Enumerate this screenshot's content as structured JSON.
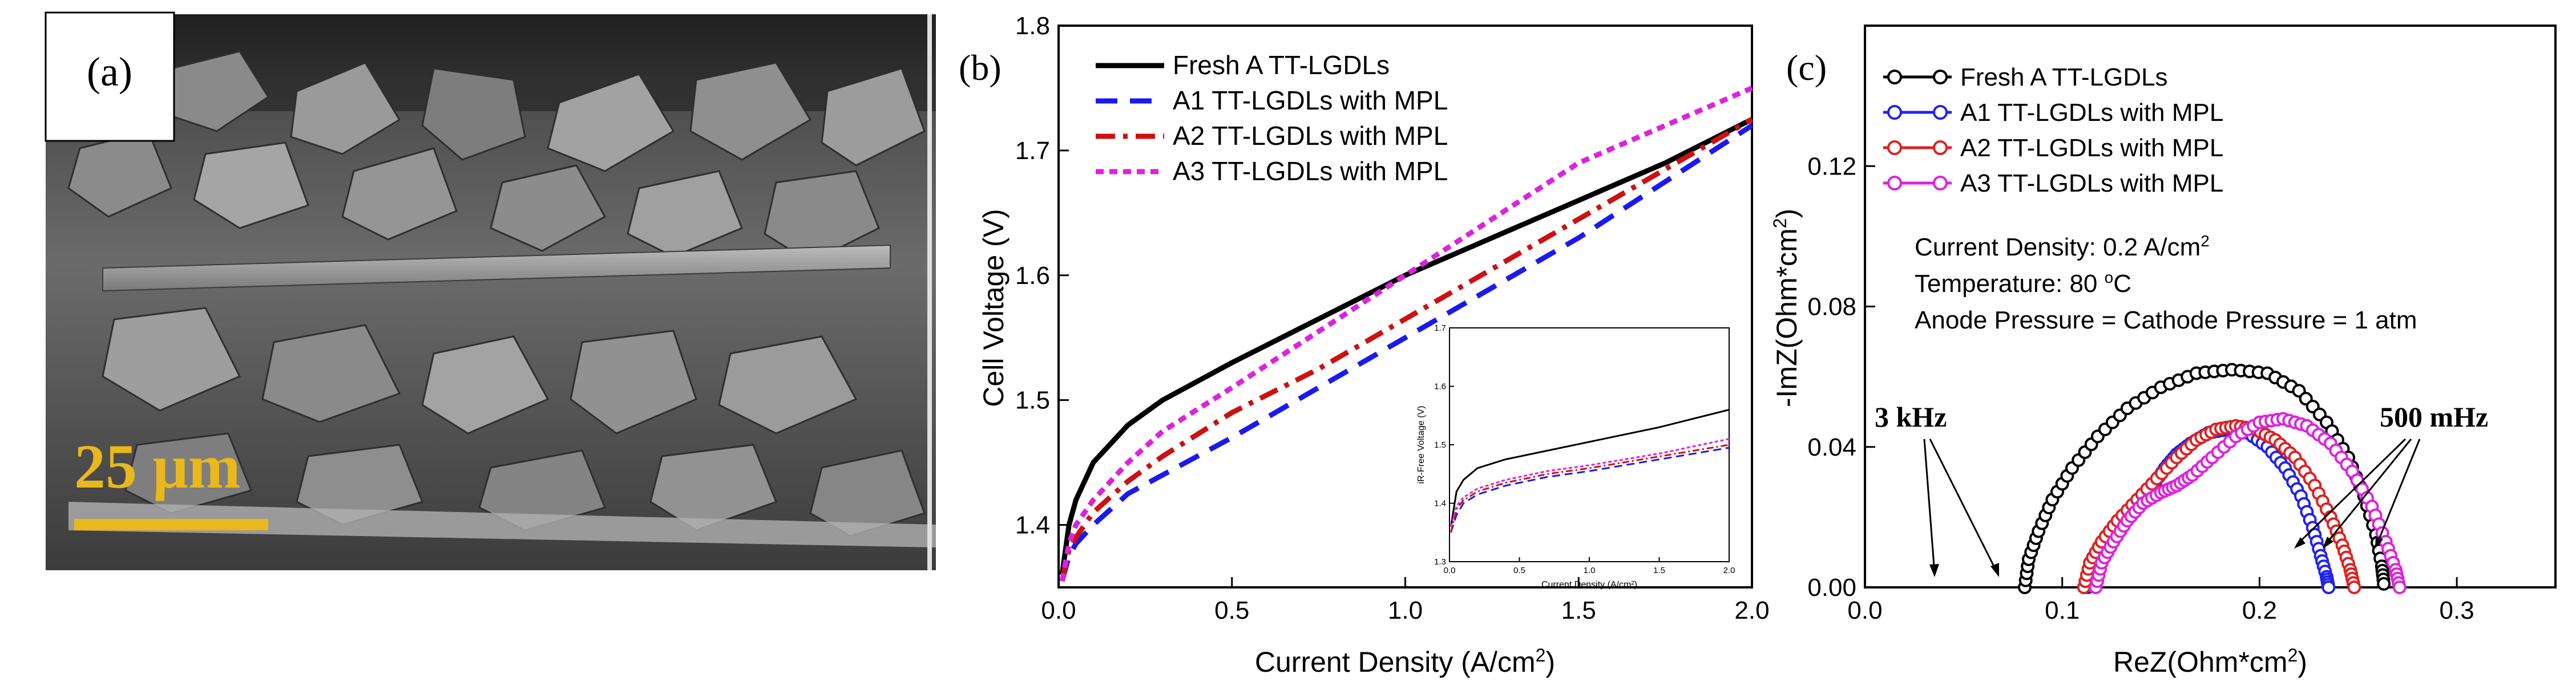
{
  "panel_a": {
    "label": "(a)",
    "scale_bar_label": "25 μm",
    "colors": {
      "scale_bar": "#e8b81c",
      "background": "#4a4a4a"
    }
  },
  "panel_b": {
    "label": "(b)",
    "inset": {
      "xlabel": "Current Density (A/cm²)",
      "ylabel": "iR-Free Voltage (V)",
      "xticks": [
        "0.0",
        "0.5",
        "1.0",
        "1.5",
        "2.0"
      ],
      "yticks": [
        "1.3",
        "1.4",
        "1.5",
        "1.6",
        "1.7"
      ]
    }
  },
  "panel_c": {
    "label": "(c)",
    "annotations": {
      "current_density": "Current Density: 0.2 A/cm",
      "current_density_sup": "2",
      "temperature": "Temperature: 80 ",
      "temperature_sup": "o",
      "temperature_unit": "C",
      "pressure": "Anode Pressure = Cathode Pressure = 1 atm",
      "freq_low": "3 kHz",
      "freq_high": "500 mHz"
    }
  },
  "chart_data": [
    {
      "type": "line",
      "title": "",
      "xlabel": "Current Density (A/cm",
      "xlabel_sup": "2",
      "xlabel_end": ")",
      "ylabel": "Cell Voltage (V)",
      "xlim": [
        0.0,
        2.0
      ],
      "ylim": [
        1.35,
        1.8
      ],
      "xticks": [
        "0.0",
        "0.5",
        "1.0",
        "1.5",
        "2.0"
      ],
      "yticks": [
        "1.4",
        "1.5",
        "1.6",
        "1.7",
        "1.8"
      ],
      "legend_position": "top-left",
      "x": [
        0.01,
        0.03,
        0.05,
        0.1,
        0.2,
        0.3,
        0.5,
        0.75,
        1.0,
        1.25,
        1.5,
        1.75,
        2.0
      ],
      "series": [
        {
          "name": "Fresh A TT-LGDLs",
          "color": "#000000",
          "dash": "solid",
          "values": [
            1.36,
            1.4,
            1.42,
            1.45,
            1.48,
            1.5,
            1.53,
            1.565,
            1.6,
            1.63,
            1.66,
            1.69,
            1.725
          ]
        },
        {
          "name": "A1 TT-LGDLs with MPL",
          "color": "#1a1aee",
          "dash": "dash",
          "values": [
            1.355,
            1.375,
            1.385,
            1.4,
            1.425,
            1.44,
            1.47,
            1.51,
            1.55,
            1.59,
            1.63,
            1.675,
            1.72
          ]
        },
        {
          "name": "A2 TT-LGDLs with MPL",
          "color": "#cc1111",
          "dash": "dashdot",
          "values": [
            1.355,
            1.38,
            1.39,
            1.41,
            1.435,
            1.455,
            1.49,
            1.525,
            1.565,
            1.605,
            1.645,
            1.685,
            1.725
          ]
        },
        {
          "name": "A3 TT-LGDLs with MPL",
          "color": "#dd22dd",
          "dash": "dot",
          "values": [
            1.355,
            1.385,
            1.4,
            1.42,
            1.45,
            1.475,
            1.51,
            1.555,
            1.6,
            1.645,
            1.69,
            1.72,
            1.75
          ]
        }
      ],
      "inset": {
        "type": "line",
        "xlim": [
          0.0,
          2.0
        ],
        "ylim": [
          1.3,
          1.7
        ],
        "x": [
          0.01,
          0.05,
          0.1,
          0.2,
          0.4,
          0.7,
          1.0,
          1.5,
          2.0
        ],
        "series": [
          {
            "name": "Fresh A TT-LGDLs",
            "values": [
              1.36,
              1.42,
              1.44,
              1.46,
              1.475,
              1.49,
              1.505,
              1.53,
              1.56
            ]
          },
          {
            "name": "A1 TT-LGDLs with MPL",
            "values": [
              1.35,
              1.38,
              1.4,
              1.415,
              1.43,
              1.445,
              1.455,
              1.475,
              1.495
            ]
          },
          {
            "name": "A2 TT-LGDLs with MPL",
            "values": [
              1.35,
              1.39,
              1.405,
              1.42,
              1.435,
              1.45,
              1.46,
              1.48,
              1.5
            ]
          },
          {
            "name": "A3 TT-LGDLs with MPL",
            "values": [
              1.36,
              1.395,
              1.41,
              1.425,
              1.44,
              1.455,
              1.465,
              1.485,
              1.51
            ]
          }
        ]
      }
    },
    {
      "type": "scatter",
      "title": "",
      "xlabel": "ReZ(Ohm*cm",
      "xlabel_sup": "2",
      "xlabel_end": ")",
      "ylabel": "-ImZ(Ohm*cm",
      "ylabel_sup": "2",
      "ylabel_end": ")",
      "xlim": [
        0.0,
        0.35
      ],
      "ylim": [
        0.0,
        0.16
      ],
      "xticks": [
        "0.0",
        "0.1",
        "0.2",
        "0.3"
      ],
      "yticks": [
        "0.00",
        "0.04",
        "0.08",
        "0.12"
      ],
      "legend_position": "top-left",
      "series": [
        {
          "name": "Fresh A TT-LGDLs",
          "color": "#000000",
          "x": [
            0.081,
            0.083,
            0.088,
            0.095,
            0.105,
            0.118,
            0.133,
            0.15,
            0.168,
            0.186,
            0.204,
            0.22,
            0.234,
            0.245,
            0.253,
            0.259,
            0.262,
            0.263
          ],
          "values": [
            0.0,
            0.008,
            0.016,
            0.025,
            0.034,
            0.043,
            0.051,
            0.057,
            0.061,
            0.062,
            0.061,
            0.056,
            0.047,
            0.037,
            0.026,
            0.015,
            0.006,
            0.001
          ]
        },
        {
          "name": "A1 TT-LGDLs with MPL",
          "color": "#2222ee",
          "x": [
            0.113,
            0.116,
            0.122,
            0.13,
            0.139,
            0.146,
            0.152,
            0.158,
            0.165,
            0.174,
            0.184,
            0.194,
            0.204,
            0.213,
            0.221,
            0.227,
            0.231,
            0.234,
            0.235
          ],
          "values": [
            0.0,
            0.006,
            0.012,
            0.018,
            0.024,
            0.029,
            0.034,
            0.038,
            0.041,
            0.044,
            0.045,
            0.044,
            0.04,
            0.034,
            0.026,
            0.017,
            0.009,
            0.003,
            0.0
          ]
        },
        {
          "name": "A2 TT-LGDLs with MPL",
          "color": "#dd2222",
          "x": [
            0.111,
            0.114,
            0.12,
            0.128,
            0.138,
            0.148,
            0.158,
            0.168,
            0.178,
            0.188,
            0.198,
            0.208,
            0.218,
            0.228,
            0.236,
            0.242,
            0.246,
            0.248
          ],
          "values": [
            0.0,
            0.007,
            0.013,
            0.019,
            0.025,
            0.031,
            0.037,
            0.042,
            0.045,
            0.046,
            0.045,
            0.042,
            0.037,
            0.029,
            0.02,
            0.012,
            0.005,
            0.0
          ]
        },
        {
          "name": "A3 TT-LGDLs with MPL",
          "color": "#dd22dd",
          "x": [
            0.117,
            0.12,
            0.126,
            0.133,
            0.141,
            0.15,
            0.158,
            0.166,
            0.176,
            0.188,
            0.2,
            0.212,
            0.224,
            0.236,
            0.247,
            0.257,
            0.264,
            0.269,
            0.271
          ],
          "values": [
            0.0,
            0.007,
            0.013,
            0.019,
            0.024,
            0.027,
            0.029,
            0.032,
            0.037,
            0.043,
            0.047,
            0.048,
            0.046,
            0.041,
            0.033,
            0.023,
            0.013,
            0.005,
            0.0
          ]
        }
      ]
    }
  ]
}
